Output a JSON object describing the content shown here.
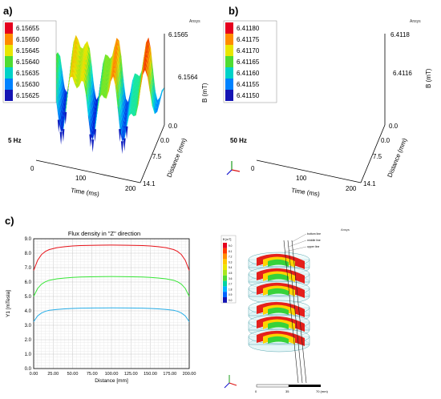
{
  "panels": {
    "a": {
      "label": "a)",
      "brand": "Ansys",
      "freq": "5 Hz",
      "legend": [
        "6.15655",
        "6.15650",
        "6.15645",
        "6.15640",
        "6.15635",
        "6.15630",
        "6.15625"
      ],
      "z_ticks": [
        "6.1565",
        "6.1564",
        "0.0"
      ],
      "z_label": "B (mT)",
      "x_ticks": [
        "0",
        "100",
        "200"
      ],
      "x_label": "Time (ms)",
      "y_ticks": [
        "0.0",
        "7.5",
        "14.1"
      ],
      "y_label": "Distance (mm)"
    },
    "b": {
      "label": "b)",
      "brand": "Ansys",
      "freq": "50 Hz",
      "legend": [
        "6.41180",
        "6.41175",
        "6.41170",
        "6.41165",
        "6.41160",
        "6.41155",
        "6.41150"
      ],
      "z_ticks": [
        "6.4118",
        "6.4116",
        "0.0"
      ],
      "z_label": "B (mT)",
      "x_ticks": [
        "0",
        "100",
        "200"
      ],
      "x_label": "Time (ms)",
      "y_ticks": [
        "0.0",
        "7.5",
        "14.1"
      ],
      "y_label": "Distance (mm)"
    },
    "c": {
      "label": "c)",
      "brand": "Ansys",
      "legend_title": "B [mT]",
      "legend_values": [
        "9.0",
        "8.1",
        "7.2",
        "6.3",
        "5.4",
        "4.5",
        "3.6",
        "2.7",
        "1.8",
        "0.9",
        "0.0"
      ],
      "coil_labels": [
        "bottom line",
        "middle line",
        "upper line"
      ],
      "scale_labels": [
        "0",
        "35",
        "70 (mm)"
      ]
    }
  },
  "colors": {
    "red": "#e8141b",
    "green": "#35e635",
    "cyan": "#27aee8"
  },
  "chart_data": {
    "type": "line",
    "title": "Flux density in \"Z\" direction",
    "xlabel": "Distance [mm]",
    "ylabel": "Y1 [mTesla]",
    "xlim": [
      0,
      200
    ],
    "ylim": [
      0,
      9
    ],
    "x_ticks": [
      "0.00",
      "25.00",
      "50.00",
      "75.00",
      "100.00",
      "125.00",
      "150.00",
      "175.00",
      "200.00"
    ],
    "y_ticks": [
      "0.0",
      "1.0",
      "2.0",
      "3.0",
      "4.0",
      "5.0",
      "6.0",
      "7.0",
      "8.0",
      "9.0"
    ],
    "grid": true,
    "x": [
      0,
      5,
      10,
      15,
      20,
      30,
      40,
      50,
      60,
      80,
      100,
      120,
      140,
      150,
      160,
      170,
      180,
      185,
      190,
      195,
      200
    ],
    "series": [
      {
        "color": "#e8141b",
        "values": [
          6.8,
          7.5,
          7.9,
          8.12,
          8.25,
          8.38,
          8.45,
          8.5,
          8.53,
          8.55,
          8.56,
          8.55,
          8.53,
          8.5,
          8.45,
          8.38,
          8.25,
          8.12,
          7.9,
          7.5,
          6.8
        ]
      },
      {
        "color": "#35e635",
        "values": [
          5.0,
          5.55,
          5.85,
          6.02,
          6.12,
          6.22,
          6.28,
          6.32,
          6.35,
          6.37,
          6.38,
          6.37,
          6.35,
          6.32,
          6.28,
          6.22,
          6.12,
          6.02,
          5.85,
          5.55,
          5.0
        ]
      },
      {
        "color": "#27aee8",
        "values": [
          3.25,
          3.65,
          3.85,
          3.97,
          4.04,
          4.1,
          4.14,
          4.17,
          4.19,
          4.2,
          4.21,
          4.2,
          4.19,
          4.17,
          4.14,
          4.1,
          4.04,
          3.97,
          3.85,
          3.65,
          3.25
        ]
      }
    ]
  }
}
